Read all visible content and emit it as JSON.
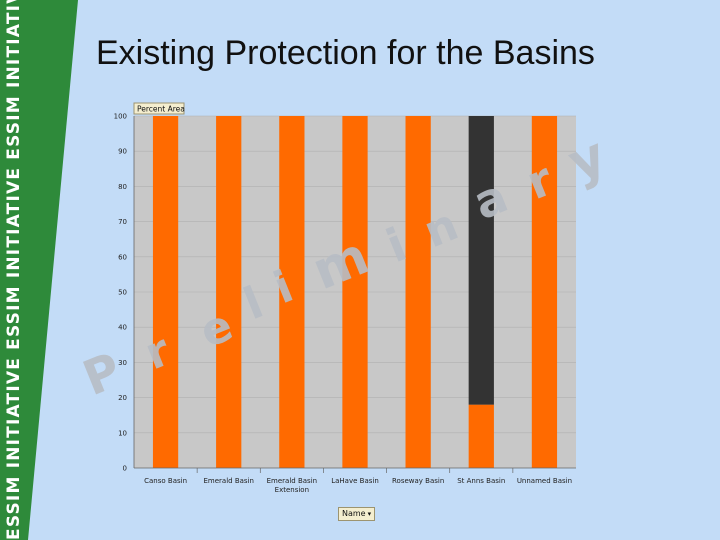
{
  "slide": {
    "title": "Existing Protection for the Basins",
    "sidebar_text": "ESSIM INITIATIVE ESSIM INITIATIVE ESSIM INITIATIVE ESSIM INITIATIVE",
    "watermark_letters": [
      "P",
      "r",
      "e",
      "l",
      "i",
      "m",
      "i",
      "n",
      "a",
      "r",
      "y"
    ],
    "colors": {
      "background": "#c3dcf7",
      "sidebar": "#2e8a3a",
      "bar_protected": "#ff6a00",
      "bar_other": "#333333",
      "plot_bg": "#c8c8c8",
      "watermark": "#b7bcc4"
    }
  },
  "chart_data": {
    "type": "bar",
    "stacked": true,
    "title": "",
    "xlabel": "",
    "ylabel": "",
    "ylim": [
      0,
      100
    ],
    "yticks": [
      0,
      10,
      20,
      30,
      40,
      50,
      60,
      70,
      80,
      90,
      100
    ],
    "grid": true,
    "legend": "none",
    "field_label": "Percent Area",
    "row_field_button": "Name",
    "categories": [
      [
        "Canso Basin"
      ],
      [
        "Emerald Basin"
      ],
      [
        "Emerald Basin",
        "Extension"
      ],
      [
        "LaHave Basin"
      ],
      [
        "Roseway Basin"
      ],
      [
        "St Anns Basin"
      ],
      [
        "Unnamed Basin"
      ]
    ],
    "series": [
      {
        "values": [
          100,
          100,
          100,
          100,
          100,
          18,
          100
        ],
        "color": "#ff6a00"
      },
      {
        "values": [
          0,
          0,
          0,
          0,
          0,
          82,
          0
        ],
        "color": "#333333"
      }
    ]
  }
}
